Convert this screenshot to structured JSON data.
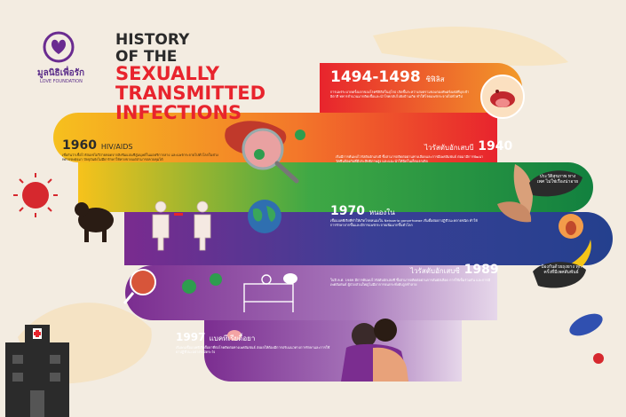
{
  "logo": {
    "name": "มูลนิธิเพื่อรัก",
    "subtitle": "LOVE FOUNDATION"
  },
  "title": {
    "line1": "HISTORY",
    "line2": "OF THE",
    "highlight1": "SEXUALLY",
    "highlight2": "TRANSMITTED",
    "highlight3": "INFECTIONS"
  },
  "timeline": [
    {
      "year": "1494-1498",
      "label": "ซิฟิลิส",
      "text": "การแพร่ระบาดครั้งแรกของโรคซิฟิลิสในยุโรป เกิดขึ้นระหว่างสงครามของกองทัพฝรั่งเศสที่บุกเข้าอิตาลี ทหารจำนวนมากติดเชื้อและนำโรคกลับไปยังบ้านเกิด ทำให้โรคแพร่กระจายไปทั่วทวีป"
    },
    {
      "year": "1940",
      "label": "ไวรัสตับอักเสบบี",
      "text": "เริ่มมีการค้นพบไวรัสตับอักเสบบี ซึ่งสามารถติดต่อผ่านทางเลือดและการมีเพศสัมพันธ์ ต่อมามีการพัฒนาวัคซีนป้องกันที่มีประสิทธิภาพสูง และแนะนำให้ฉีดในเด็กแรกเกิด"
    },
    {
      "year": "1960",
      "label": "HIV/AIDS",
      "text": "เชื่อกันว่าเชื้อไวรัสเอชไอวีถ่ายทอดจากลิงชิมแปนซีสู่มนุษย์ในแอฟริกากลาง และแพร่กระจายไปทั่วโลกในช่วงทศวรรษต่อมา ปัจจุบันยังไม่มียารักษาให้หายขาดแต่สามารถควบคุมได้"
    },
    {
      "year": "1970",
      "label": "หนองใน",
      "text": "เชื้อแบคทีเรียที่ทำให้เกิดโรคหนองใน Neisseria gonorrhoeae เริ่มดื้อต่อยาปฏิชีวนะหลายชนิด ทำให้การรักษายากขึ้นและมีการแพร่กระจายเพิ่มมากขึ้นทั่วโลก"
    },
    {
      "year": "1989",
      "label": "ไวรัสตับอักเสบซี",
      "text": "ในปี ค.ศ. 1989 มีการค้นพบไวรัสตับอักเสบซี ซึ่งสามารถติดต่อผ่านการสัมผัสเลือด การใช้เข็มร่วมกัน และการมีเพศสัมพันธ์ ผู้ป่วยส่วนใหญ่ไม่มีอาการจนกระทั่งตับถูกทำลาย"
    },
    {
      "year": "1997",
      "label": "แบคทีเรียดื้อยา",
      "text": "เริ่มพบเชื้อแบคทีเรียดื้อยาที่ก่อโรคติดต่อทางเพศสัมพันธ์ ส่งผลให้ต้องมีการปรับแนวทางการรักษาและการใช้ยาปฏิชีวนะอย่างระมัดระวัง"
    }
  ],
  "bubbles": {
    "top": "ประวัติสุขภาพ ทางเพศ ไม่ใช่เรื่องน่าอาย",
    "bottom": "ป้องกันด้วยถุงยาง ทุกครั้งที่มีเพศสัมพันธ์"
  },
  "colors": {
    "band1": "#e8242d",
    "band1_end": "#f5a623",
    "band2": "#f6b21a",
    "band2_end": "#ef4324",
    "band3": "#13a14a",
    "band3_end": "#f7c21b",
    "band4": "#2a3e8f",
    "band4_end": "#6b2d8f",
    "band5": "#6b2d8f",
    "band5_end": "#c8a6d4",
    "bg": "#f3ece1",
    "dark": "#2b2b2b"
  }
}
